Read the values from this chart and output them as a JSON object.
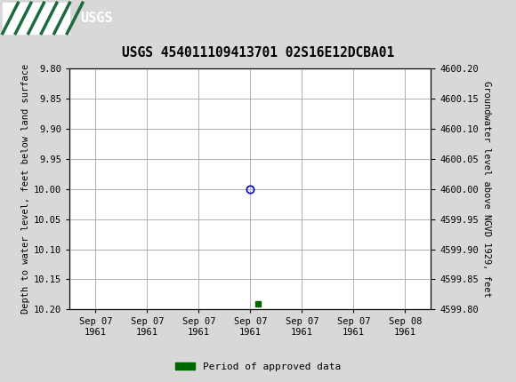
{
  "title": "USGS 454011109413701 02S16E12DCBA01",
  "ylabel_left": "Depth to water level, feet below land surface",
  "ylabel_right": "Groundwater level above NGVD 1929, feet",
  "ylim_left": [
    9.8,
    10.2
  ],
  "ylim_right": [
    4599.8,
    4600.2
  ],
  "yticks_left": [
    9.8,
    9.85,
    9.9,
    9.95,
    10.0,
    10.05,
    10.1,
    10.15,
    10.2
  ],
  "yticks_right": [
    4600.2,
    4600.15,
    4600.1,
    4600.05,
    4600.0,
    4599.95,
    4599.9,
    4599.85,
    4599.8
  ],
  "data_point_x": 3.0,
  "data_point_y": 10.0,
  "green_bar_x": 3.15,
  "green_bar_y": 10.19,
  "data_color": "#0000cc",
  "green_color": "#006600",
  "header_bg": "#1a6b3c",
  "background_color": "#d8d8d8",
  "plot_bg": "#ffffff",
  "grid_color": "#aaaaaa",
  "font_family": "monospace",
  "legend_label": "Period of approved data",
  "xtick_labels": [
    "Sep 07\n1961",
    "Sep 07\n1961",
    "Sep 07\n1961",
    "Sep 07\n1961",
    "Sep 07\n1961",
    "Sep 07\n1961",
    "Sep 08\n1961"
  ],
  "xtick_positions": [
    0,
    1,
    2,
    3,
    4,
    5,
    6
  ],
  "title_fontsize": 10.5,
  "tick_fontsize": 7.5,
  "label_fontsize": 7.5
}
